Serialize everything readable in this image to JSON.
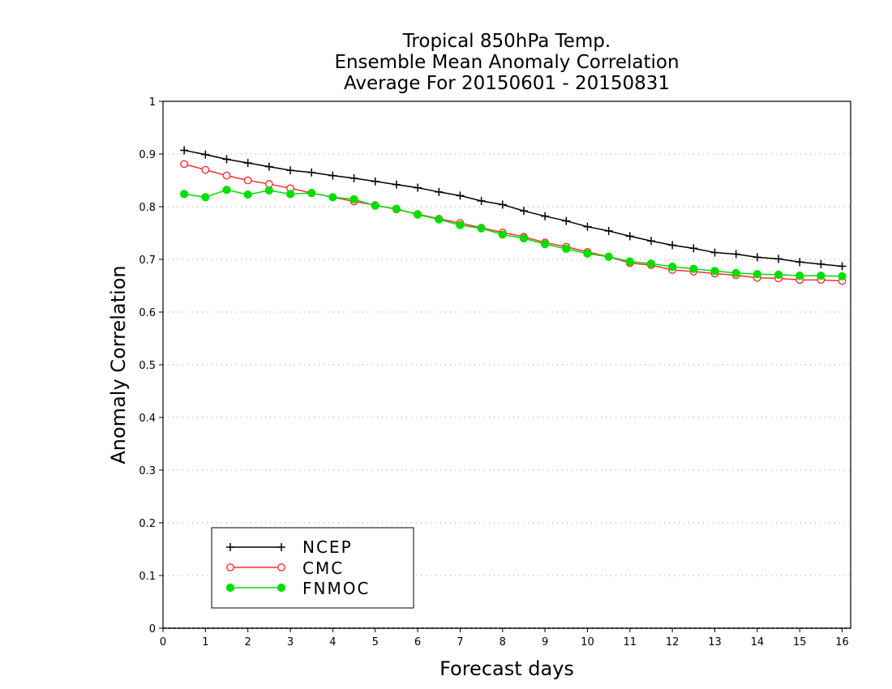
{
  "chart_data": {
    "type": "line",
    "title_lines": [
      "Tropical 850hPa Temp.",
      "Ensemble Mean Anomaly Correlation",
      "Average For 20150601 - 20150831"
    ],
    "xlabel": "Forecast days",
    "ylabel": "Anomaly Correlation",
    "xlim": [
      0,
      16.2
    ],
    "ylim": [
      0,
      1
    ],
    "x_ticks": [
      "0",
      "1",
      "2",
      "3",
      "4",
      "5",
      "6",
      "7",
      "8",
      "9",
      "10",
      "11",
      "12",
      "13",
      "14",
      "15",
      "16"
    ],
    "y_ticks": [
      "0",
      "0.1",
      "0.2",
      "0.3",
      "0.4",
      "0.5",
      "0.6",
      "0.7",
      "0.8",
      "0.9",
      "1"
    ],
    "grid": "horizontal dotted",
    "legend_position": "bottom-left",
    "x": [
      0.5,
      1,
      1.5,
      2,
      2.5,
      3,
      3.5,
      4,
      4.5,
      5,
      5.5,
      6,
      6.5,
      7,
      7.5,
      8,
      8.5,
      9,
      9.5,
      10,
      10.5,
      11,
      11.5,
      12,
      12.5,
      13,
      13.5,
      14,
      14.5,
      15,
      15.5,
      16
    ],
    "series": [
      {
        "name": "NCEP",
        "color": "#000000",
        "marker": "plus",
        "values": [
          0.907,
          0.899,
          0.89,
          0.883,
          0.876,
          0.869,
          0.865,
          0.859,
          0.854,
          0.848,
          0.842,
          0.836,
          0.828,
          0.821,
          0.811,
          0.804,
          0.792,
          0.782,
          0.773,
          0.762,
          0.754,
          0.744,
          0.735,
          0.727,
          0.721,
          0.713,
          0.71,
          0.704,
          0.701,
          0.695,
          0.691,
          0.687
        ]
      },
      {
        "name": "CMC",
        "color": "#ff3030",
        "marker": "open-circle",
        "values": [
          0.881,
          0.87,
          0.859,
          0.85,
          0.843,
          0.835,
          0.826,
          0.818,
          0.81,
          0.803,
          0.795,
          0.786,
          0.777,
          0.769,
          0.76,
          0.751,
          0.743,
          0.732,
          0.724,
          0.714,
          0.705,
          0.693,
          0.689,
          0.68,
          0.677,
          0.673,
          0.67,
          0.665,
          0.664,
          0.661,
          0.661,
          0.659
        ]
      },
      {
        "name": "FNMOC",
        "color": "#00dd00",
        "marker": "filled-circle",
        "values": [
          0.824,
          0.818,
          0.832,
          0.823,
          0.831,
          0.824,
          0.826,
          0.818,
          0.814,
          0.802,
          0.796,
          0.785,
          0.776,
          0.765,
          0.759,
          0.747,
          0.74,
          0.729,
          0.72,
          0.711,
          0.705,
          0.696,
          0.692,
          0.686,
          0.682,
          0.678,
          0.674,
          0.672,
          0.671,
          0.669,
          0.669,
          0.668
        ]
      }
    ]
  }
}
